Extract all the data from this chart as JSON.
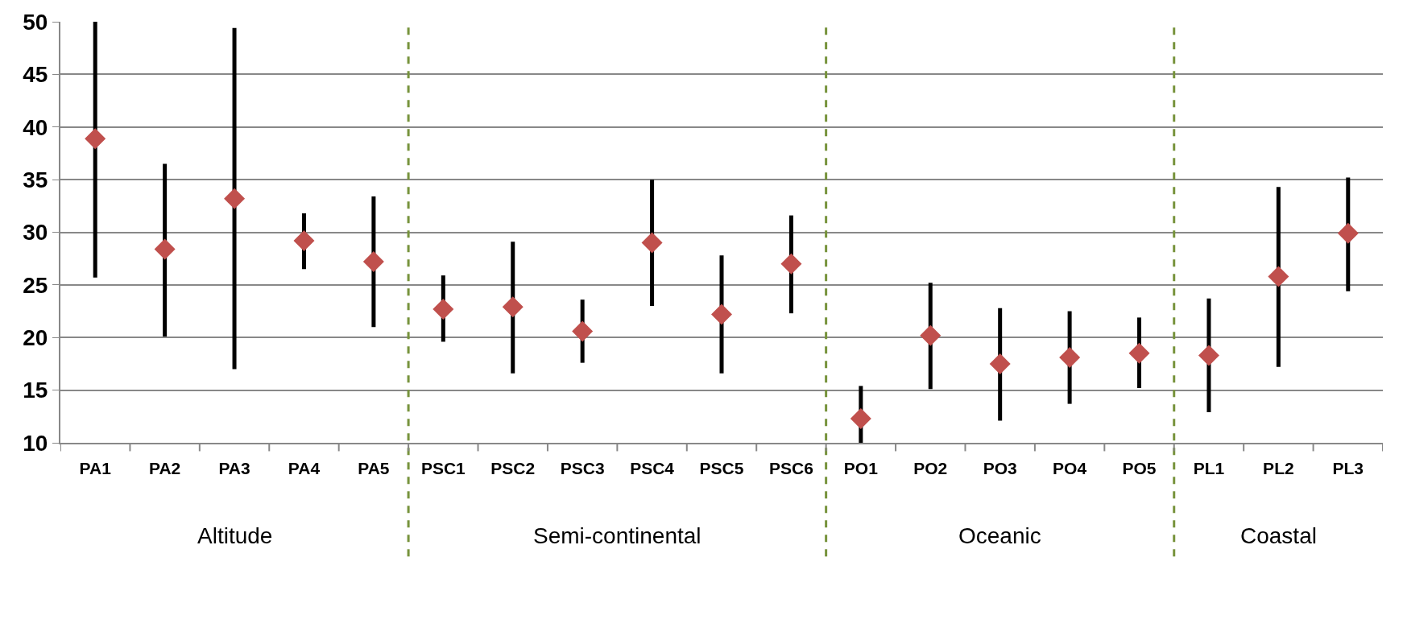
{
  "chart_data": {
    "type": "scatter",
    "marker": "diamond",
    "grid": "y",
    "categories": [
      "PA1",
      "PA2",
      "PA3",
      "PA4",
      "PA5",
      "PSC1",
      "PSC2",
      "PSC3",
      "PSC4",
      "PSC5",
      "PSC6",
      "PO1",
      "PO2",
      "PO3",
      "PO4",
      "PO5",
      "PL1",
      "PL2",
      "PL3"
    ],
    "series": [
      {
        "color": "#c0504d",
        "values": [
          38.9,
          28.4,
          33.2,
          29.2,
          27.2,
          22.7,
          22.9,
          20.6,
          29.0,
          22.2,
          27.0,
          12.3,
          20.2,
          17.5,
          18.1,
          18.5,
          18.3,
          25.8,
          29.9
        ],
        "errors": [
          [
            25.7,
            50
          ],
          [
            20.1,
            36.5
          ],
          [
            17,
            49.4
          ],
          [
            26.5,
            31.8
          ],
          [
            21,
            33.4
          ],
          [
            19.6,
            25.9
          ],
          [
            16.6,
            29.1
          ],
          [
            17.6,
            23.6
          ],
          [
            23,
            35
          ],
          [
            16.6,
            27.8
          ],
          [
            22.3,
            31.6
          ],
          [
            10,
            15.4
          ],
          [
            15.1,
            25.2
          ],
          [
            12.1,
            22.8
          ],
          [
            13.7,
            22.5
          ],
          [
            15.2,
            21.9
          ],
          [
            12.9,
            23.7
          ],
          [
            17.2,
            34.3
          ],
          [
            24.4,
            35.2
          ]
        ]
      }
    ],
    "ylim": [
      10,
      50
    ],
    "yticks": [
      10,
      15,
      20,
      25,
      30,
      35,
      40,
      45,
      50
    ],
    "annotations": [
      "Altitude",
      "Semi-continental",
      "Oceanic",
      "Coastal"
    ]
  }
}
